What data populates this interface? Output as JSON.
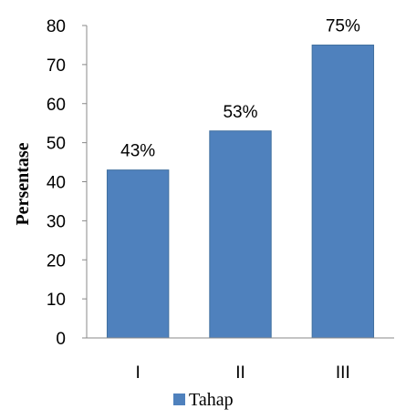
{
  "chart_data": {
    "type": "bar",
    "categories": [
      "I",
      "II",
      "III"
    ],
    "values": [
      43,
      53,
      75
    ],
    "data_labels": [
      "43%",
      "53%",
      "75%"
    ],
    "title": "",
    "xlabel": "",
    "ylabel": "Persentase",
    "ylim": [
      0,
      80
    ],
    "yticks": [
      0,
      10,
      20,
      30,
      40,
      50,
      60,
      70,
      80
    ],
    "grid": false,
    "legend": {
      "label": "Tahap",
      "placement": "bottom-center"
    },
    "bar_color": "#4f81bd",
    "bar_edge_color": "#41709f"
  }
}
